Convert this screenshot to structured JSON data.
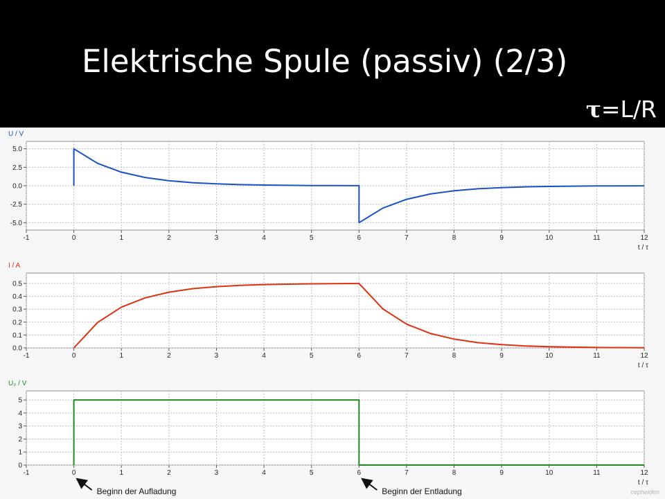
{
  "slide": {
    "title": "Elektrische Spule (passiv) (2/3)",
    "formula_symbol": "τ",
    "formula_rest": "=L/R",
    "credit": "cepheiden"
  },
  "annotations": [
    {
      "text": "Beginn der Aufladung",
      "x": 0
    },
    {
      "text": "Beginn der Entladung",
      "x": 6
    }
  ],
  "chart_data": [
    {
      "type": "line",
      "ylabel": "U / V",
      "xlabel": "t / τ",
      "color": "#1a50c8",
      "xlim": [
        -1,
        12
      ],
      "ylim": [
        -6,
        6
      ],
      "xticks": [
        "-1",
        "0",
        "1",
        "2",
        "3",
        "4",
        "5",
        "6",
        "7",
        "8",
        "9",
        "10",
        "11",
        "12"
      ],
      "yticks": [
        {
          "v": 5,
          "t": "5.0"
        },
        {
          "v": 2.5,
          "t": "2.5"
        },
        {
          "v": 0,
          "t": "0.0"
        },
        {
          "v": -2.5,
          "t": "-2.5"
        },
        {
          "v": -5,
          "t": "-5.0"
        }
      ],
      "grid": true,
      "series": [
        {
          "x": [
            0,
            0,
            0.5,
            1,
            1.5,
            2,
            2.5,
            3,
            3.5,
            4,
            4.5,
            5,
            5.5,
            6,
            6,
            6.5,
            7,
            7.5,
            8,
            8.5,
            9,
            9.5,
            10,
            11,
            12
          ],
          "y": [
            0,
            5.0,
            3.03,
            1.84,
            1.12,
            0.68,
            0.41,
            0.25,
            0.15,
            0.09,
            0.06,
            0.03,
            0.02,
            0.01,
            -5.0,
            -3.03,
            -1.84,
            -1.12,
            -0.68,
            -0.41,
            -0.25,
            -0.15,
            -0.09,
            -0.03,
            -0.01
          ]
        }
      ]
    },
    {
      "type": "line",
      "ylabel": "I / A",
      "xlabel": "t / τ",
      "color": "#e03010",
      "xlim": [
        -1,
        12
      ],
      "ylim": [
        0,
        0.58
      ],
      "xticks": [
        "-1",
        "0",
        "1",
        "2",
        "3",
        "4",
        "5",
        "6",
        "7",
        "8",
        "9",
        "10",
        "11",
        "12"
      ],
      "yticks": [
        {
          "v": 0.5,
          "t": "0.5"
        },
        {
          "v": 0.4,
          "t": "0.4"
        },
        {
          "v": 0.3,
          "t": "0.3"
        },
        {
          "v": 0.2,
          "t": "0.2"
        },
        {
          "v": 0.1,
          "t": "0.1"
        },
        {
          "v": 0,
          "t": "0.0"
        }
      ],
      "grid": true,
      "series": [
        {
          "x": [
            0,
            0.5,
            1,
            1.5,
            2,
            2.5,
            3,
            3.5,
            4,
            4.5,
            5,
            5.5,
            6,
            6.5,
            7,
            7.5,
            8,
            8.5,
            9,
            9.5,
            10,
            11,
            12
          ],
          "y": [
            0,
            0.197,
            0.316,
            0.388,
            0.432,
            0.459,
            0.475,
            0.485,
            0.491,
            0.494,
            0.497,
            0.498,
            0.499,
            0.303,
            0.184,
            0.112,
            0.068,
            0.041,
            0.025,
            0.015,
            0.009,
            0.003,
            0.001
          ]
        }
      ]
    },
    {
      "type": "line",
      "ylabel": "U₀ / V",
      "xlabel": "t / τ",
      "color": "#1f8a1f",
      "xlim": [
        -1,
        12
      ],
      "ylim": [
        0,
        5.7
      ],
      "xticks": [
        "-1",
        "0",
        "1",
        "2",
        "3",
        "4",
        "5",
        "6",
        "7",
        "8",
        "9",
        "10",
        "11",
        "12"
      ],
      "yticks": [
        {
          "v": 5,
          "t": "5"
        },
        {
          "v": 4,
          "t": "4"
        },
        {
          "v": 3,
          "t": "3"
        },
        {
          "v": 2,
          "t": "2"
        },
        {
          "v": 1,
          "t": "1"
        },
        {
          "v": 0,
          "t": "0"
        }
      ],
      "grid": true,
      "series": [
        {
          "x": [
            0,
            0,
            6,
            6,
            12
          ],
          "y": [
            0,
            5,
            5,
            0,
            0
          ]
        }
      ]
    }
  ]
}
